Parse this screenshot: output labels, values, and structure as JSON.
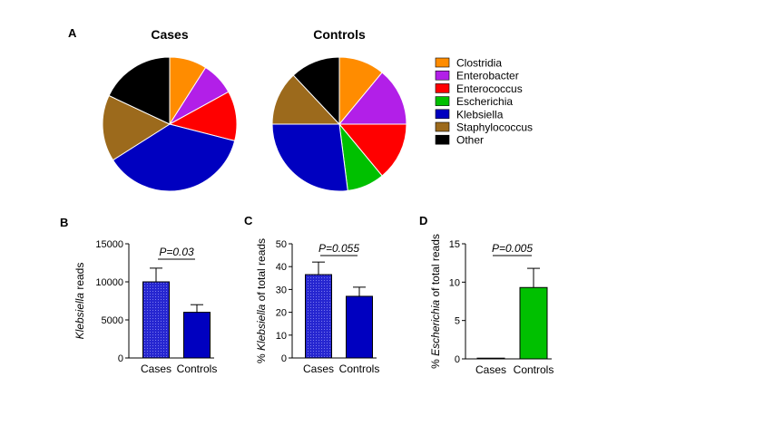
{
  "panels": {
    "A": "A",
    "B": "B",
    "C": "C",
    "D": "D"
  },
  "legend": {
    "items": [
      {
        "label": "Clostridia",
        "color": "#FF8C00"
      },
      {
        "label": "Enterobacter",
        "color": "#B21FE8"
      },
      {
        "label": "Enterococcus",
        "color": "#FF0000"
      },
      {
        "label": "Escherichia",
        "color": "#00C000"
      },
      {
        "label": "Klebsiella",
        "color": "#0000C0"
      },
      {
        "label": "Staphylococcus",
        "color": "#9C6A1C"
      },
      {
        "label": "Other",
        "color": "#000000"
      }
    ]
  },
  "chart_data": [
    {
      "type": "pie",
      "title": "Cases",
      "labels": [
        "Clostridia",
        "Enterobacter",
        "Enterococcus",
        "Escherichia",
        "Klebsiella",
        "Staphylococcus",
        "Other"
      ],
      "values": [
        9,
        8,
        12,
        0,
        37,
        16,
        18
      ]
    },
    {
      "type": "pie",
      "title": "Controls",
      "labels": [
        "Clostridia",
        "Enterobacter",
        "Enterococcus",
        "Escherichia",
        "Klebsiella",
        "Staphylococcus",
        "Other"
      ],
      "values": [
        11,
        14,
        14,
        9,
        27,
        13,
        12
      ]
    },
    {
      "type": "bar",
      "panel": "B",
      "categories": [
        "Cases",
        "Controls"
      ],
      "values": [
        10000,
        6000
      ],
      "errors": [
        1800,
        1000
      ],
      "ylim": [
        0,
        15000
      ],
      "yticks": [
        0,
        5000,
        10000,
        15000
      ],
      "ylabel_italic": "Klebsiella",
      "ylabel_plain": " reads",
      "pvalue": "P=0.03",
      "colors": [
        "#0000C0",
        "#0000C0"
      ],
      "patterned": [
        true,
        false
      ]
    },
    {
      "type": "bar",
      "panel": "C",
      "categories": [
        "Cases",
        "Controls"
      ],
      "values": [
        36.5,
        27
      ],
      "errors": [
        5.5,
        4
      ],
      "ylim": [
        0,
        50
      ],
      "yticks": [
        0,
        10,
        20,
        30,
        40,
        50
      ],
      "ylabel_plain_pre": "% ",
      "ylabel_italic": "Klebsiella",
      "ylabel_plain": " of total reads",
      "pvalue": "P=0.055",
      "colors": [
        "#0000C0",
        "#0000C0"
      ],
      "patterned": [
        true,
        false
      ]
    },
    {
      "type": "bar",
      "panel": "D",
      "categories": [
        "Cases",
        "Controls"
      ],
      "values": [
        0,
        9.3
      ],
      "errors": [
        0,
        2.5
      ],
      "ylim": [
        0,
        15
      ],
      "yticks": [
        0,
        5,
        10,
        15
      ],
      "ylabel_plain_pre": "% ",
      "ylabel_italic": "Escherichia",
      "ylabel_plain": " of total reads",
      "pvalue": "P=0.005",
      "colors": [
        "#00C000",
        "#00C000"
      ],
      "patterned": [
        false,
        false
      ]
    }
  ]
}
